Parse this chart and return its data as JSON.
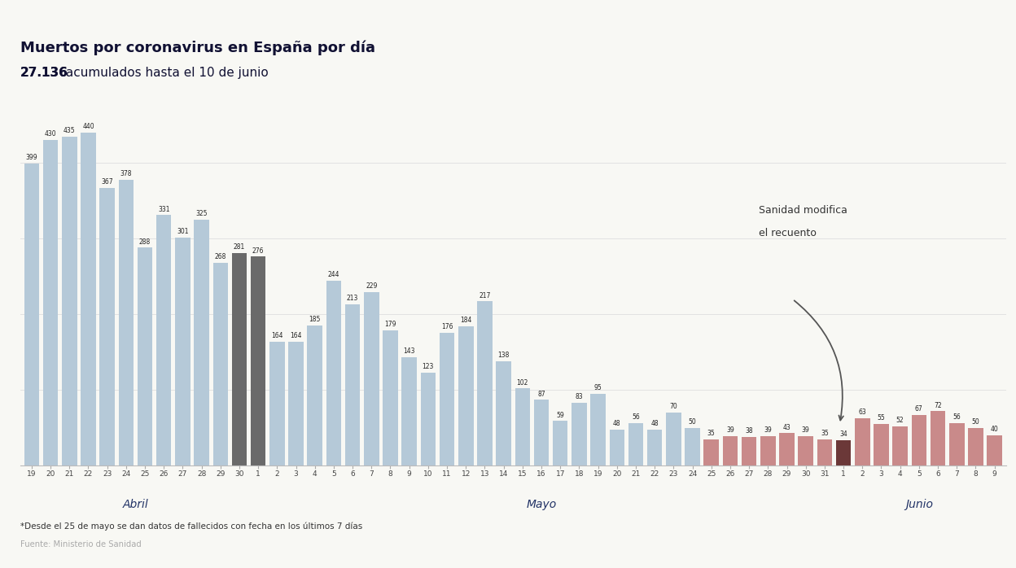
{
  "title_line1": "Muertos por coronavirus en España por día",
  "title_line2_bold": "27.136",
  "title_line2_rest": " acumulados hasta el 10 de junio",
  "footnote": "*Desde el 25 de mayo se dan datos de fallecidos con fecha en los últimos 7 días",
  "source": "Fuente: Ministerio de Sanidad",
  "annotation_line1": "Sanidad modifica",
  "annotation_line2": "el recuento",
  "bars": [
    {
      "label": "19",
      "month": "Abril",
      "value": 399,
      "color": "lightblue"
    },
    {
      "label": "20",
      "month": "Abril",
      "value": 430,
      "color": "lightblue"
    },
    {
      "label": "21",
      "month": "Abril",
      "value": 435,
      "color": "lightblue"
    },
    {
      "label": "22",
      "month": "Abril",
      "value": 440,
      "color": "lightblue"
    },
    {
      "label": "23",
      "month": "Abril",
      "value": 367,
      "color": "lightblue"
    },
    {
      "label": "24",
      "month": "Abril",
      "value": 378,
      "color": "lightblue"
    },
    {
      "label": "25",
      "month": "Abril",
      "value": 288,
      "color": "lightblue"
    },
    {
      "label": "26",
      "month": "Abril",
      "value": 331,
      "color": "lightblue"
    },
    {
      "label": "27",
      "month": "Abril",
      "value": 301,
      "color": "lightblue"
    },
    {
      "label": "28",
      "month": "Abril",
      "value": 325,
      "color": "lightblue"
    },
    {
      "label": "29",
      "month": "Abril",
      "value": 268,
      "color": "lightblue"
    },
    {
      "label": "30",
      "month": "Abril",
      "value": 281,
      "color": "darkgray"
    },
    {
      "label": "1",
      "month": "Mayo",
      "value": 276,
      "color": "darkgray"
    },
    {
      "label": "2",
      "month": "Mayo",
      "value": 164,
      "color": "lightblue"
    },
    {
      "label": "3",
      "month": "Mayo",
      "value": 164,
      "color": "lightblue"
    },
    {
      "label": "4",
      "month": "Mayo",
      "value": 185,
      "color": "lightblue"
    },
    {
      "label": "5",
      "month": "Mayo",
      "value": 244,
      "color": "lightblue"
    },
    {
      "label": "6",
      "month": "Mayo",
      "value": 213,
      "color": "lightblue"
    },
    {
      "label": "7",
      "month": "Mayo",
      "value": 229,
      "color": "lightblue"
    },
    {
      "label": "8",
      "month": "Mayo",
      "value": 179,
      "color": "lightblue"
    },
    {
      "label": "9",
      "month": "Mayo",
      "value": 143,
      "color": "lightblue"
    },
    {
      "label": "10",
      "month": "Mayo",
      "value": 123,
      "color": "lightblue"
    },
    {
      "label": "11",
      "month": "Mayo",
      "value": 176,
      "color": "lightblue"
    },
    {
      "label": "12",
      "month": "Mayo",
      "value": 184,
      "color": "lightblue"
    },
    {
      "label": "13",
      "month": "Mayo",
      "value": 217,
      "color": "lightblue"
    },
    {
      "label": "14",
      "month": "Mayo",
      "value": 138,
      "color": "lightblue"
    },
    {
      "label": "15",
      "month": "Mayo",
      "value": 102,
      "color": "lightblue"
    },
    {
      "label": "16",
      "month": "Mayo",
      "value": 87,
      "color": "lightblue"
    },
    {
      "label": "17",
      "month": "Mayo",
      "value": 59,
      "color": "lightblue"
    },
    {
      "label": "18",
      "month": "Mayo",
      "value": 83,
      "color": "lightblue"
    },
    {
      "label": "19",
      "month": "Mayo",
      "value": 95,
      "color": "lightblue"
    },
    {
      "label": "20",
      "month": "Mayo",
      "value": 48,
      "color": "lightblue"
    },
    {
      "label": "21",
      "month": "Mayo",
      "value": 56,
      "color": "lightblue"
    },
    {
      "label": "22",
      "month": "Mayo",
      "value": 48,
      "color": "lightblue"
    },
    {
      "label": "23",
      "month": "Mayo",
      "value": 70,
      "color": "lightblue"
    },
    {
      "label": "24",
      "month": "Mayo",
      "value": 50,
      "color": "lightblue"
    },
    {
      "label": "25",
      "month": "Mayo",
      "value": 35,
      "color": "salmon"
    },
    {
      "label": "26",
      "month": "Mayo",
      "value": 39,
      "color": "salmon"
    },
    {
      "label": "27",
      "month": "Mayo",
      "value": 38,
      "color": "salmon"
    },
    {
      "label": "28",
      "month": "Mayo",
      "value": 39,
      "color": "salmon"
    },
    {
      "label": "29",
      "month": "Mayo",
      "value": 43,
      "color": "salmon"
    },
    {
      "label": "30",
      "month": "Mayo",
      "value": 39,
      "color": "salmon"
    },
    {
      "label": "31",
      "month": "Mayo",
      "value": 35,
      "color": "salmon"
    },
    {
      "label": "1",
      "month": "Junio",
      "value": 34,
      "color": "darkbrown"
    },
    {
      "label": "2",
      "month": "Junio",
      "value": 63,
      "color": "salmon"
    },
    {
      "label": "3",
      "month": "Junio",
      "value": 55,
      "color": "salmon"
    },
    {
      "label": "4",
      "month": "Junio",
      "value": 52,
      "color": "salmon"
    },
    {
      "label": "5",
      "month": "Junio",
      "value": 67,
      "color": "salmon"
    },
    {
      "label": "6",
      "month": "Junio",
      "value": 72,
      "color": "salmon"
    },
    {
      "label": "7",
      "month": "Junio",
      "value": 56,
      "color": "salmon"
    },
    {
      "label": "8",
      "month": "Junio",
      "value": 50,
      "color": "salmon"
    },
    {
      "label": "9",
      "month": "Junio",
      "value": 40,
      "color": "salmon"
    }
  ],
  "color_map": {
    "lightblue": "#b5c9d8",
    "darkgray": "#6a6a6a",
    "salmon": "#c98a8a",
    "darkbrown": "#6b3838"
  },
  "month_groups": [
    {
      "text": "Abril",
      "start": 0,
      "end": 11
    },
    {
      "text": "Mayo",
      "start": 12,
      "end": 42
    },
    {
      "text": "Junio",
      "start": 43,
      "end": 51
    }
  ],
  "ylim": [
    0,
    480
  ],
  "background_color": "#f8f8f4",
  "grid_color": "#e2e2e2"
}
